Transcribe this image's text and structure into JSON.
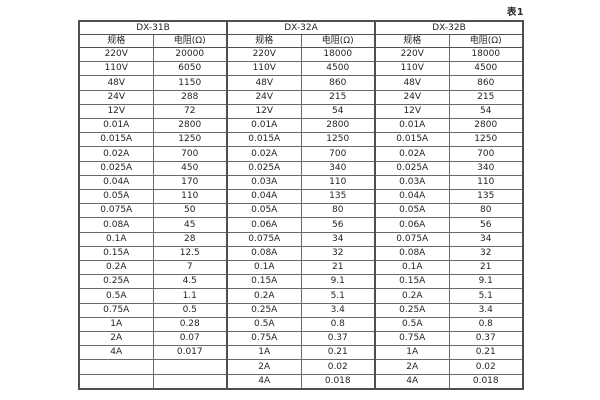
{
  "caption": "表1",
  "table": {
    "groups": [
      {
        "name": "DX-31B",
        "columns": [
          "规格",
          "电阻(Ω)"
        ]
      },
      {
        "name": "DX-32A",
        "columns": [
          "规格",
          "电阻(Ω)"
        ]
      },
      {
        "name": "DX-32B",
        "columns": [
          "规格",
          "电阻(Ω)"
        ]
      }
    ],
    "rows": [
      [
        "220V",
        "20000",
        "220V",
        "18000",
        "220V",
        "18000"
      ],
      [
        "110V",
        "6050",
        "110V",
        "4500",
        "110V",
        "4500"
      ],
      [
        "48V",
        "1150",
        "48V",
        "860",
        "48V",
        "860"
      ],
      [
        "24V",
        "288",
        "24V",
        "215",
        "24V",
        "215"
      ],
      [
        "12V",
        "72",
        "12V",
        "54",
        "12V",
        "54"
      ],
      [
        "0.01A",
        "2800",
        "0.01A",
        "2800",
        "0.01A",
        "2800"
      ],
      [
        "0.015A",
        "1250",
        "0.015A",
        "1250",
        "0.015A",
        "1250"
      ],
      [
        "0.02A",
        "700",
        "0.02A",
        "700",
        "0.02A",
        "700"
      ],
      [
        "0.025A",
        "450",
        "0.025A",
        "340",
        "0.025A",
        "340"
      ],
      [
        "0.04A",
        "170",
        "0.03A",
        "110",
        "0.03A",
        "110"
      ],
      [
        "0.05A",
        "110",
        "0.04A",
        "135",
        "0.04A",
        "135"
      ],
      [
        "0.075A",
        "50",
        "0.05A",
        "80",
        "0.05A",
        "80"
      ],
      [
        "0.08A",
        "45",
        "0.06A",
        "56",
        "0.06A",
        "56"
      ],
      [
        "0.1A",
        "28",
        "0.075A",
        "34",
        "0.075A",
        "34"
      ],
      [
        "0.15A",
        "12.5",
        "0.08A",
        "32",
        "0.08A",
        "32"
      ],
      [
        "0.2A",
        "7",
        "0.1A",
        "21",
        "0.1A",
        "21"
      ],
      [
        "0.25A",
        "4.5",
        "0.15A",
        "9.1",
        "0.15A",
        "9.1"
      ],
      [
        "0.5A",
        "1.1",
        "0.2A",
        "5.1",
        "0.2A",
        "5.1"
      ],
      [
        "0.75A",
        "0.5",
        "0.25A",
        "3.4",
        "0.25A",
        "3.4"
      ],
      [
        "1A",
        "0.28",
        "0.5A",
        "0.8",
        "0.5A",
        "0.8"
      ],
      [
        "2A",
        "0.07",
        "0.75A",
        "0.37",
        "0.75A",
        "0.37"
      ],
      [
        "4A",
        "0.017",
        "1A",
        "0.21",
        "1A",
        "0.21"
      ],
      [
        "",
        "",
        "2A",
        "0.02",
        "2A",
        "0.02"
      ],
      [
        "",
        "",
        "4A",
        "0.018",
        "4A",
        "0.018"
      ]
    ],
    "colors": {
      "background": "#ffffff",
      "border": "#6a6a6a",
      "border_heavy": "#4f4f4f",
      "text": "#242424"
    }
  }
}
